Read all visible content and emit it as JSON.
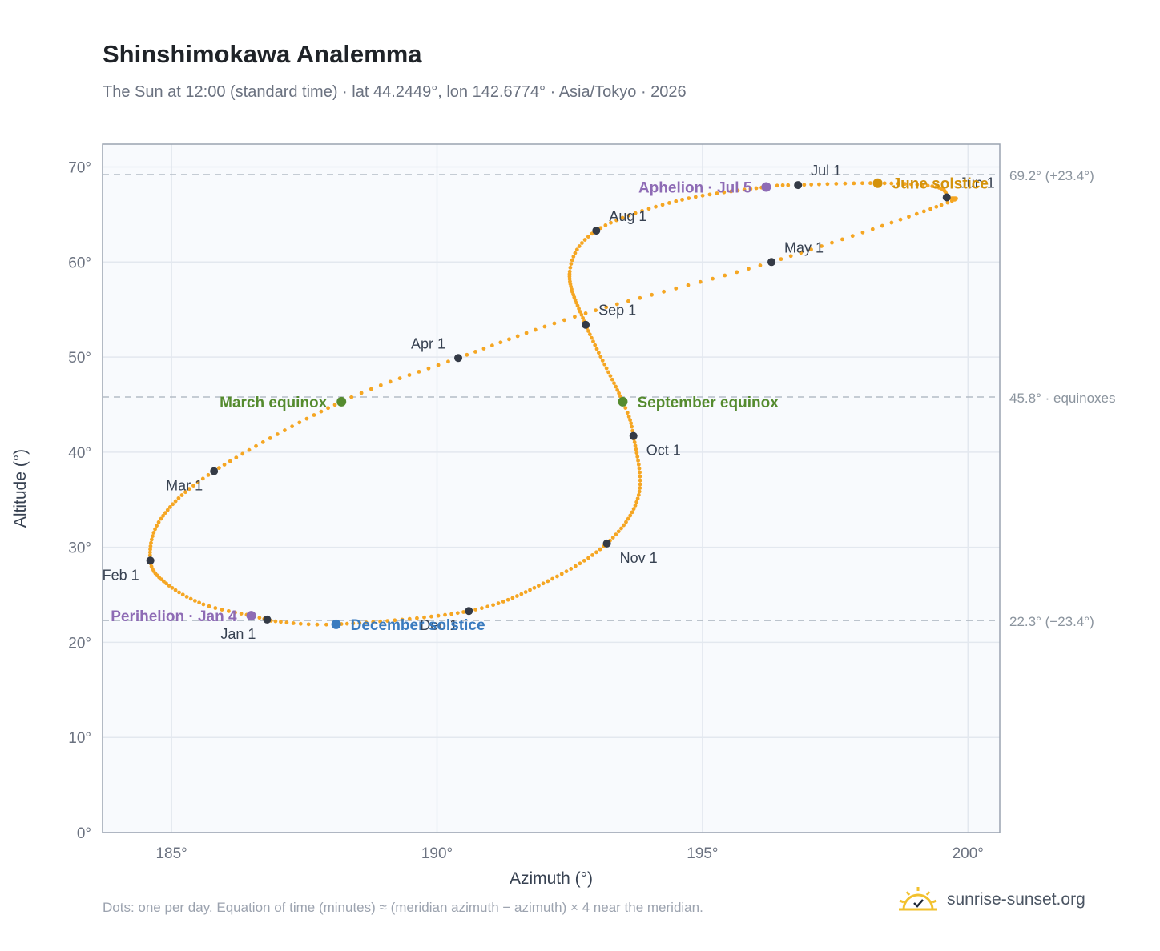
{
  "header": {
    "title": "Shinshimokawa Analemma",
    "subtitle": "The Sun at 12:00 (standard time) · lat 44.2449°, lon 142.6774° · Asia/Tokyo · 2026"
  },
  "footer": {
    "note": "Dots: one per day. Equation of time (minutes) ≈ (meridian azimuth − azimuth) × 4 near the meridian.",
    "brand": "sunrise-sunset.org",
    "brand_icon": "sun-logo-icon"
  },
  "colors": {
    "curve": "#f5a623",
    "month_dot": "#343a46",
    "equinox": "#558b2f",
    "june_solstice": "#d4920a",
    "december_solstice": "#3a7bbf",
    "apsis": "#8e6bb5",
    "plot_bg": "#f8fafd",
    "grid": "#e3e8ef",
    "axis": "#9aa3b0",
    "reference": "#b4bcc6"
  },
  "chart_data": {
    "type": "scatter",
    "xlabel": "Azimuth (°)",
    "ylabel": "Altitude (°)",
    "xlim": [
      183.7,
      200.6
    ],
    "ylim": [
      0,
      72.4
    ],
    "xticks": [
      185,
      190,
      195,
      200
    ],
    "yticks": [
      0,
      10,
      20,
      30,
      40,
      50,
      60,
      70
    ],
    "x_tick_format": "°",
    "y_tick_format": "°",
    "grid": true,
    "curve_anchor_dates": [
      {
        "day": 1,
        "x": 186.8,
        "y": 22.4
      },
      {
        "day": 4,
        "x": 186.5,
        "y": 22.8
      },
      {
        "day": 12,
        "x": 185.6,
        "y": 24.0
      },
      {
        "day": 22,
        "x": 184.9,
        "y": 26.2
      },
      {
        "day": 32,
        "x": 184.6,
        "y": 28.6
      },
      {
        "day": 45,
        "x": 184.8,
        "y": 33.0
      },
      {
        "day": 60,
        "x": 185.8,
        "y": 38.0
      },
      {
        "day": 79,
        "x": 188.2,
        "y": 45.3
      },
      {
        "day": 91,
        "x": 190.4,
        "y": 49.9
      },
      {
        "day": 105,
        "x": 192.8,
        "y": 54.6
      },
      {
        "day": 121,
        "x": 196.3,
        "y": 60.0
      },
      {
        "day": 140,
        "x": 199.5,
        "y": 66.0
      },
      {
        "day": 152,
        "x": 199.6,
        "y": 66.8
      },
      {
        "day": 162,
        "x": 199.4,
        "y": 67.9
      },
      {
        "day": 172,
        "x": 198.3,
        "y": 68.3
      },
      {
        "day": 182,
        "x": 196.8,
        "y": 68.1
      },
      {
        "day": 186,
        "x": 196.2,
        "y": 67.9
      },
      {
        "day": 200,
        "x": 194.5,
        "y": 66.4
      },
      {
        "day": 213,
        "x": 193.0,
        "y": 63.3
      },
      {
        "day": 225,
        "x": 192.5,
        "y": 59.0
      },
      {
        "day": 244,
        "x": 192.8,
        "y": 53.4
      },
      {
        "day": 266,
        "x": 193.5,
        "y": 45.3
      },
      {
        "day": 274,
        "x": 193.7,
        "y": 41.7
      },
      {
        "day": 290,
        "x": 193.8,
        "y": 35.5
      },
      {
        "day": 305,
        "x": 193.2,
        "y": 30.4
      },
      {
        "day": 320,
        "x": 192.0,
        "y": 26.2
      },
      {
        "day": 335,
        "x": 190.6,
        "y": 23.3
      },
      {
        "day": 355,
        "x": 188.1,
        "y": 21.9
      },
      {
        "day": 365,
        "x": 186.8,
        "y": 22.3
      }
    ],
    "month_markers": [
      {
        "label": "Jan 1",
        "x": 186.8,
        "y": 22.4,
        "label_pos": "below-left"
      },
      {
        "label": "Feb 1",
        "x": 184.6,
        "y": 28.6,
        "label_pos": "below-left"
      },
      {
        "label": "Mar 1",
        "x": 185.8,
        "y": 38.0,
        "label_pos": "below-left"
      },
      {
        "label": "Apr 1",
        "x": 190.4,
        "y": 49.9,
        "label_pos": "above-left"
      },
      {
        "label": "May 1",
        "x": 196.3,
        "y": 60.0,
        "label_pos": "above-right"
      },
      {
        "label": "Jun 1",
        "x": 199.6,
        "y": 66.8,
        "label_pos": "above-right"
      },
      {
        "label": "Jul 1",
        "x": 196.8,
        "y": 68.1,
        "label_pos": "above-right"
      },
      {
        "label": "Aug 1",
        "x": 193.0,
        "y": 63.3,
        "label_pos": "above-right"
      },
      {
        "label": "Sep 1",
        "x": 192.8,
        "y": 53.4,
        "label_pos": "above-right"
      },
      {
        "label": "Oct 1",
        "x": 193.7,
        "y": 41.7,
        "label_pos": "below-right"
      },
      {
        "label": "Nov 1",
        "x": 193.2,
        "y": 30.4,
        "label_pos": "below-right"
      },
      {
        "label": "Dec 1",
        "x": 190.6,
        "y": 23.3,
        "label_pos": "below-left"
      }
    ],
    "events": [
      {
        "label": "March equinox",
        "x": 188.2,
        "y": 45.3,
        "color_key": "equinox",
        "label_pos": "left"
      },
      {
        "label": "September equinox",
        "x": 193.5,
        "y": 45.3,
        "color_key": "equinox",
        "label_pos": "right"
      },
      {
        "label": "June solstice",
        "x": 198.3,
        "y": 68.3,
        "color_key": "june_solstice",
        "label_pos": "right"
      },
      {
        "label": "December solstice",
        "x": 188.1,
        "y": 21.9,
        "color_key": "december_solstice",
        "label_pos": "right"
      },
      {
        "label": "Aphelion · Jul 5",
        "x": 196.2,
        "y": 67.9,
        "color_key": "apsis",
        "label_pos": "left"
      },
      {
        "label": "Perihelion · Jan 4",
        "x": 186.5,
        "y": 22.8,
        "color_key": "apsis",
        "label_pos": "left"
      }
    ],
    "reference_lines": [
      {
        "y": 69.2,
        "label": "69.2° (+23.4°)"
      },
      {
        "y": 45.8,
        "label": "45.8° · equinoxes"
      },
      {
        "y": 22.3,
        "label": "22.3° (−23.4°)"
      }
    ]
  }
}
